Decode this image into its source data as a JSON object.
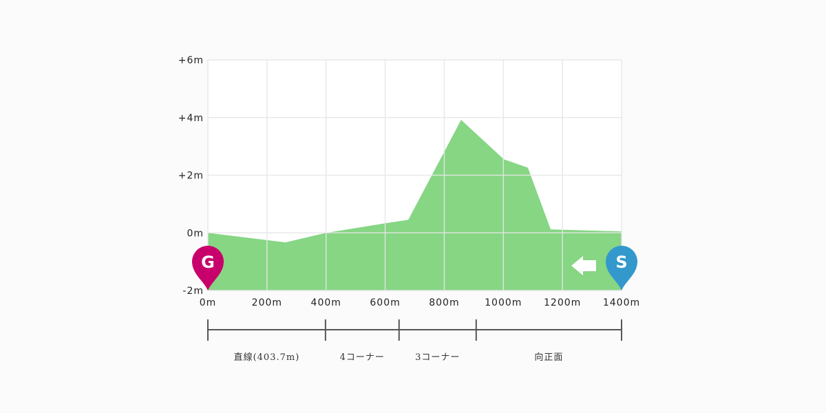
{
  "chart_data": {
    "type": "area",
    "xlim": [
      0,
      1400
    ],
    "ylim": [
      -2,
      6
    ],
    "grid": true,
    "x_ticks": [
      0,
      200,
      400,
      600,
      800,
      1000,
      1200,
      1400
    ],
    "x_tick_labels": [
      "0m",
      "200m",
      "400m",
      "600m",
      "800m",
      "1000m",
      "1200m",
      "1400m"
    ],
    "y_ticks": [
      -2,
      0,
      2,
      4,
      6
    ],
    "y_tick_labels": [
      "-2m",
      "0m",
      "+2m",
      "+4m",
      "+6m"
    ],
    "points": [
      [
        0,
        0
      ],
      [
        263,
        -0.33
      ],
      [
        400,
        0
      ],
      [
        600,
        0.33
      ],
      [
        678,
        0.45
      ],
      [
        857,
        3.92
      ],
      [
        1002,
        2.55
      ],
      [
        1083,
        2.26
      ],
      [
        1160,
        0.12
      ],
      [
        1400,
        0.05
      ]
    ],
    "fill_color": "#86d684",
    "markers": {
      "goal": {
        "label": "G",
        "x": 0,
        "color": "#c8006b"
      },
      "start": {
        "label": "S",
        "x": 1400,
        "color": "#3399cc"
      },
      "direction": "right-to-left"
    },
    "sections": [
      {
        "label": "直線(403.7m)",
        "from": 0,
        "to": 398
      },
      {
        "label": "4コーナー",
        "from": 398,
        "to": 647
      },
      {
        "label": "3コーナー",
        "from": 647,
        "to": 908
      },
      {
        "label": "向正面",
        "from": 908,
        "to": 1400
      }
    ]
  }
}
